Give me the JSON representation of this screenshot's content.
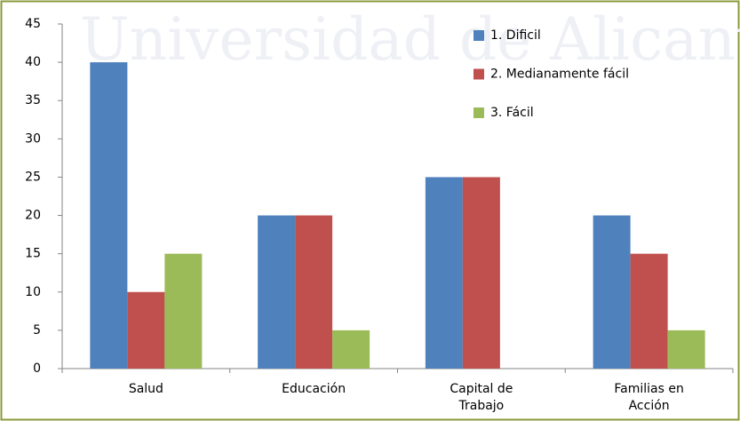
{
  "chart_data": {
    "type": "bar",
    "watermark": "Universidad de Alicante",
    "categories": [
      "Salud",
      "Educación",
      "Capital de Trabajo",
      "Familias en Acción"
    ],
    "series": [
      {
        "name": "1. Dificil",
        "color": "#4f81bd",
        "values": [
          40,
          20,
          25,
          20
        ]
      },
      {
        "name": "2. Medianamente fácil",
        "color": "#c0504d",
        "values": [
          10,
          20,
          25,
          15
        ]
      },
      {
        "name": "3. Fácil",
        "color": "#9bbb59",
        "values": [
          15,
          5,
          0,
          5
        ]
      }
    ],
    "ylim": [
      0,
      45
    ],
    "yticks": [
      0,
      5,
      10,
      15,
      20,
      25,
      30,
      35,
      40,
      45
    ],
    "grid": false,
    "legend": "top-right"
  }
}
